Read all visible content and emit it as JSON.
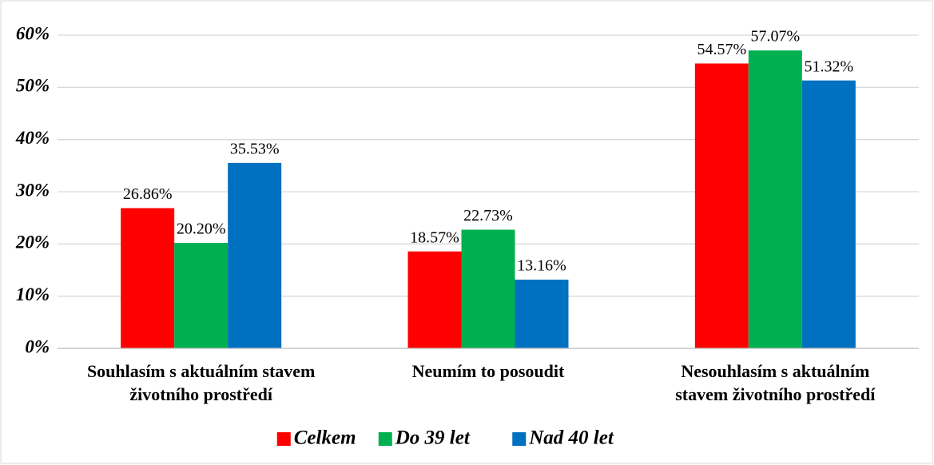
{
  "chart_data": {
    "type": "bar",
    "categories": [
      "Souhlasím s aktuálním stavem životního prostředí",
      "Neumím to posoudit",
      "Nesouhlasím s aktuálním stavem životního prostředí"
    ],
    "series": [
      {
        "name": "Celkem",
        "color": "#ff0000",
        "values": [
          26.86,
          18.57,
          54.57
        ],
        "value_labels": [
          "26.86%",
          "18.57%",
          "54.57%"
        ]
      },
      {
        "name": "Do 39 let",
        "color": "#00b050",
        "values": [
          20.2,
          22.73,
          57.07
        ],
        "value_labels": [
          "20.20%",
          "22.73%",
          "57.07%"
        ]
      },
      {
        "name": "Nad 40 let",
        "color": "#0070c0",
        "values": [
          35.53,
          13.16,
          51.32
        ],
        "value_labels": [
          "35.53%",
          "13.16%",
          "51.32%"
        ]
      }
    ],
    "ylim": [
      0,
      60
    ],
    "yticks": [
      {
        "value": 0,
        "label": "0%"
      },
      {
        "value": 10,
        "label": "10%"
      },
      {
        "value": 20,
        "label": "20%"
      },
      {
        "value": 30,
        "label": "30%"
      },
      {
        "value": 40,
        "label": "40%"
      },
      {
        "value": 50,
        "label": "50%"
      },
      {
        "value": 60,
        "label": "60%"
      }
    ],
    "grid": true,
    "legend": "bottom"
  }
}
